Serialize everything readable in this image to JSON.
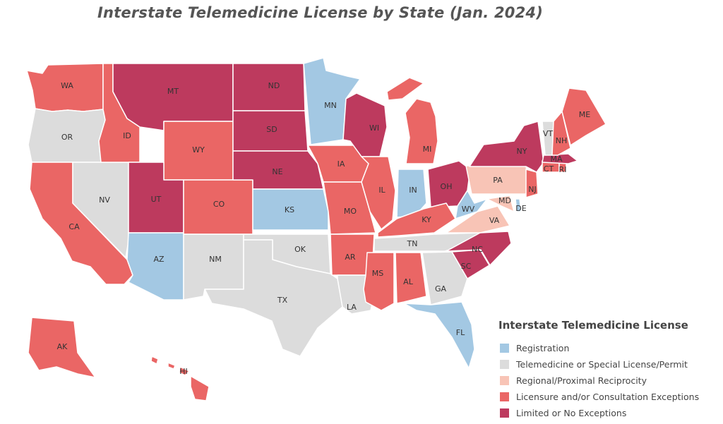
{
  "title": "Interstate Telemedicine License by State (Jan. 2024)",
  "colors": {
    "registration": "#a3c8e3",
    "special": "#dcdcdc",
    "reciprocity": "#f8c4b6",
    "licensure": "#ea6665",
    "limited": "#bd3a5e"
  },
  "legend": {
    "title": "Interstate Telemedicine License",
    "items": [
      {
        "key": "registration",
        "label": "Registration"
      },
      {
        "key": "special",
        "label": "Telemedicine or Special License/Permit"
      },
      {
        "key": "reciprocity",
        "label": "Regional/Proximal Reciprocity"
      },
      {
        "key": "licensure",
        "label": "Licensure and/or Consultation Exceptions"
      },
      {
        "key": "limited",
        "label": "Limited or No Exceptions"
      }
    ]
  },
  "states": [
    {
      "abbr": "WA",
      "category": "licensure"
    },
    {
      "abbr": "OR",
      "category": "special"
    },
    {
      "abbr": "CA",
      "category": "licensure"
    },
    {
      "abbr": "NV",
      "category": "special"
    },
    {
      "abbr": "ID",
      "category": "licensure"
    },
    {
      "abbr": "MT",
      "category": "limited"
    },
    {
      "abbr": "WY",
      "category": "licensure"
    },
    {
      "abbr": "UT",
      "category": "limited"
    },
    {
      "abbr": "AZ",
      "category": "registration"
    },
    {
      "abbr": "CO",
      "category": "licensure"
    },
    {
      "abbr": "NM",
      "category": "special"
    },
    {
      "abbr": "ND",
      "category": "limited"
    },
    {
      "abbr": "SD",
      "category": "limited"
    },
    {
      "abbr": "NE",
      "category": "limited"
    },
    {
      "abbr": "KS",
      "category": "registration"
    },
    {
      "abbr": "OK",
      "category": "special"
    },
    {
      "abbr": "TX",
      "category": "special"
    },
    {
      "abbr": "MN",
      "category": "registration"
    },
    {
      "abbr": "IA",
      "category": "licensure"
    },
    {
      "abbr": "MO",
      "category": "licensure"
    },
    {
      "abbr": "AR",
      "category": "licensure"
    },
    {
      "abbr": "LA",
      "category": "special"
    },
    {
      "abbr": "WI",
      "category": "limited"
    },
    {
      "abbr": "IL",
      "category": "licensure"
    },
    {
      "abbr": "MI",
      "category": "licensure"
    },
    {
      "abbr": "IN",
      "category": "registration"
    },
    {
      "abbr": "OH",
      "category": "limited"
    },
    {
      "abbr": "KY",
      "category": "licensure"
    },
    {
      "abbr": "TN",
      "category": "special"
    },
    {
      "abbr": "MS",
      "category": "licensure"
    },
    {
      "abbr": "AL",
      "category": "licensure"
    },
    {
      "abbr": "GA",
      "category": "special"
    },
    {
      "abbr": "FL",
      "category": "registration"
    },
    {
      "abbr": "SC",
      "category": "limited"
    },
    {
      "abbr": "NC",
      "category": "limited"
    },
    {
      "abbr": "VA",
      "category": "reciprocity"
    },
    {
      "abbr": "WV",
      "category": "registration"
    },
    {
      "abbr": "PA",
      "category": "reciprocity"
    },
    {
      "abbr": "MD",
      "category": "reciprocity"
    },
    {
      "abbr": "DE",
      "category": "registration"
    },
    {
      "abbr": "NJ",
      "category": "licensure"
    },
    {
      "abbr": "NY",
      "category": "limited"
    },
    {
      "abbr": "CT",
      "category": "licensure"
    },
    {
      "abbr": "RI",
      "category": "licensure"
    },
    {
      "abbr": "MA",
      "category": "limited"
    },
    {
      "abbr": "VT",
      "category": "special"
    },
    {
      "abbr": "NH",
      "category": "licensure"
    },
    {
      "abbr": "ME",
      "category": "licensure"
    },
    {
      "abbr": "AK",
      "category": "licensure"
    },
    {
      "abbr": "HI",
      "category": "licensure"
    }
  ]
}
